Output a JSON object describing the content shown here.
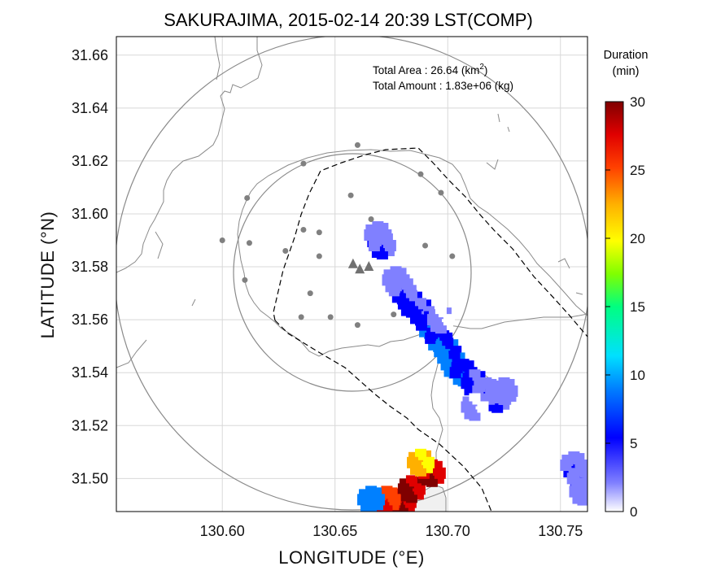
{
  "title": "SAKURAJIMA, 2015-02-14 20:39 LST(COMP)",
  "axes": {
    "xlabel": "LONGITUDE (°E)",
    "ylabel": "LATITUDE (°N)",
    "xlim": [
      130.553,
      130.762
    ],
    "ylim": [
      31.4875,
      31.667
    ],
    "xticks": [
      130.6,
      130.65,
      130.7,
      130.75
    ],
    "xtick_labels": [
      "130.60",
      "130.65",
      "130.70",
      "130.75"
    ],
    "yticks": [
      31.5,
      31.52,
      31.54,
      31.56,
      31.58,
      31.6,
      31.62,
      31.64,
      31.66
    ],
    "ytick_labels": [
      "31.50",
      "31.52",
      "31.54",
      "31.56",
      "31.58",
      "31.60",
      "31.62",
      "31.64",
      "31.66"
    ],
    "grid": true
  },
  "summary": {
    "area_label": "Total Area   : 26.64 (km",
    "area_sup": "2",
    "area_close": ")",
    "amount_label": "Total Amount : 1.83e+06 (kg)"
  },
  "colorbar": {
    "title_line1": "Duration",
    "title_line2": "(min)",
    "min": 0,
    "max": 30,
    "ticks": [
      0,
      5,
      10,
      15,
      20,
      25,
      30
    ],
    "tick_labels": [
      "0",
      "5",
      "10",
      "15",
      "20",
      "25",
      "30"
    ],
    "colors": [
      "#ffffff",
      "#8080ff",
      "#0000ff",
      "#0080ff",
      "#00e0ff",
      "#00ff80",
      "#80ff00",
      "#ffff00",
      "#ffb000",
      "#ff4000",
      "#e00000",
      "#800000"
    ]
  },
  "chart_data": {
    "type": "heatmap",
    "description_value": "ash-fall duration (min)",
    "vents": [
      {
        "lon": 130.658,
        "lat": 31.581
      },
      {
        "lon": 130.661,
        "lat": 31.579
      },
      {
        "lon": 130.665,
        "lat": 31.58
      }
    ],
    "stations": [
      {
        "lon": 130.66,
        "lat": 31.626
      },
      {
        "lon": 130.636,
        "lat": 31.619
      },
      {
        "lon": 130.688,
        "lat": 31.615
      },
      {
        "lon": 130.611,
        "lat": 31.606
      },
      {
        "lon": 130.643,
        "lat": 31.593
      },
      {
        "lon": 130.657,
        "lat": 31.607
      },
      {
        "lon": 130.666,
        "lat": 31.598
      },
      {
        "lon": 130.697,
        "lat": 31.608
      },
      {
        "lon": 130.6,
        "lat": 31.59
      },
      {
        "lon": 130.612,
        "lat": 31.589
      },
      {
        "lon": 130.628,
        "lat": 31.586
      },
      {
        "lon": 130.643,
        "lat": 31.584
      },
      {
        "lon": 130.636,
        "lat": 31.594
      },
      {
        "lon": 130.69,
        "lat": 31.588
      },
      {
        "lon": 130.702,
        "lat": 31.584
      },
      {
        "lon": 130.61,
        "lat": 31.575
      },
      {
        "lon": 130.639,
        "lat": 31.57
      },
      {
        "lon": 130.635,
        "lat": 31.561
      },
      {
        "lon": 130.648,
        "lat": 31.561
      },
      {
        "lon": 130.66,
        "lat": 31.558
      },
      {
        "lon": 130.676,
        "lat": 31.562
      }
    ],
    "plume_cells": [
      {
        "lon": 130.669,
        "lat": 31.592,
        "v": 5
      },
      {
        "lon": 130.671,
        "lat": 31.588,
        "v": 5
      },
      {
        "lon": 130.677,
        "lat": 31.575,
        "v": 4
      },
      {
        "lon": 130.68,
        "lat": 31.571,
        "v": 5
      },
      {
        "lon": 130.684,
        "lat": 31.566,
        "v": 6
      },
      {
        "lon": 130.688,
        "lat": 31.563,
        "v": 6
      },
      {
        "lon": 130.692,
        "lat": 31.558,
        "v": 7
      },
      {
        "lon": 130.696,
        "lat": 31.553,
        "v": 7
      },
      {
        "lon": 130.7,
        "lat": 31.548,
        "v": 8
      },
      {
        "lon": 130.703,
        "lat": 31.543,
        "v": 8
      },
      {
        "lon": 130.707,
        "lat": 31.54,
        "v": 7
      },
      {
        "lon": 130.712,
        "lat": 31.536,
        "v": 6
      },
      {
        "lon": 130.717,
        "lat": 31.533,
        "v": 5
      },
      {
        "lon": 130.722,
        "lat": 31.53,
        "v": 5
      },
      {
        "lon": 130.725,
        "lat": 31.533,
        "v": 4
      },
      {
        "lon": 130.712,
        "lat": 31.527,
        "v": 3
      },
      {
        "lon": 130.697,
        "lat": 31.56,
        "v": 3
      },
      {
        "lon": 130.756,
        "lat": 31.505,
        "v": 5
      },
      {
        "lon": 130.759,
        "lat": 31.5,
        "v": 5
      },
      {
        "lon": 130.76,
        "lat": 31.495,
        "v": 4
      },
      {
        "lon": 130.68,
        "lat": 31.491,
        "v": 29
      },
      {
        "lon": 130.684,
        "lat": 31.496,
        "v": 30
      },
      {
        "lon": 130.693,
        "lat": 31.502,
        "v": 29
      },
      {
        "lon": 130.688,
        "lat": 31.506,
        "v": 22
      },
      {
        "lon": 130.673,
        "lat": 31.492,
        "v": 26
      },
      {
        "lon": 130.666,
        "lat": 31.492,
        "v": 9
      }
    ],
    "range_circles_km": [
      5,
      10
    ]
  }
}
